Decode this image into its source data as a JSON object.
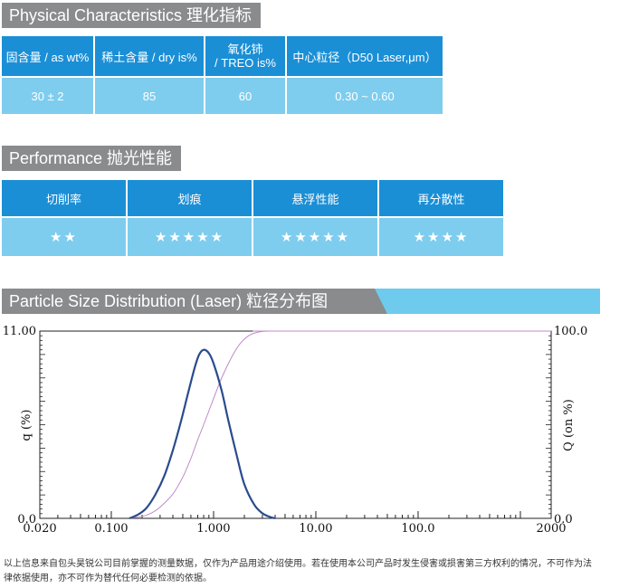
{
  "section1": {
    "title": "Physical Characteristics  理化指标",
    "headers": [
      "固含量 / as wt%",
      "稀土含量 / dry is%",
      "氧化铈\n/ TREO is%",
      "中心粒径（D50 Laser,μm）"
    ],
    "values": [
      "30 ± 2",
      "85",
      "60",
      "0.30 ~ 0.60"
    ]
  },
  "section2": {
    "title": "Performance  抛光性能",
    "headers": [
      "切削率",
      "划痕",
      "悬浮性能",
      "再分散性"
    ],
    "ratings": [
      2,
      5,
      5,
      4
    ]
  },
  "section3": {
    "title": "Particle Size Distribution (Laser)  粒径分布图"
  },
  "colors": {
    "header_blue": "#1b8fd6",
    "value_light_blue": "#7ecdee",
    "title_grey": "#8a8b8d",
    "banner_cyan": "#6ecbed",
    "density_curve": "#2a4b8d",
    "cumulative_curve": "#c08ac8"
  },
  "chart_data": {
    "type": "line",
    "x_scale": "log",
    "xlim": [
      0.02,
      2000
    ],
    "ylim_left": [
      0,
      11
    ],
    "ylim_right": [
      0,
      100
    ],
    "x_tick_labels": [
      "0.020",
      "0.100",
      "1.000",
      "10.00",
      "100.0",
      "2000"
    ],
    "x_tick_values": [
      0.02,
      0.1,
      1,
      10,
      100,
      2000
    ],
    "y_left_label": "q (%)",
    "y_left_tick_labels": [
      "0.0",
      "11.00"
    ],
    "y_right_label": "Q (on %)",
    "y_right_tick_labels": [
      "0.0",
      "100.0"
    ],
    "grid": false,
    "series": [
      {
        "axis": "left",
        "x": [
          0.15,
          0.18,
          0.22,
          0.27,
          0.33,
          0.4,
          0.48,
          0.56,
          0.65,
          0.72,
          0.8,
          0.9,
          1.0,
          1.2,
          1.4,
          1.7,
          2.0,
          2.5,
          3.0,
          3.5,
          4.0
        ],
        "y": [
          0.0,
          0.2,
          0.6,
          1.4,
          2.5,
          4.0,
          5.7,
          7.3,
          8.8,
          9.6,
          9.9,
          9.7,
          9.1,
          7.5,
          5.7,
          3.6,
          2.0,
          0.8,
          0.3,
          0.1,
          0.0
        ]
      },
      {
        "axis": "right",
        "x": [
          0.15,
          0.2,
          0.25,
          0.3,
          0.4,
          0.5,
          0.6,
          0.7,
          0.8,
          1.0,
          1.2,
          1.5,
          1.8,
          2.2,
          2.6,
          3.0,
          3.5,
          4.0
        ],
        "y": [
          0.0,
          1.0,
          3.0,
          6.0,
          13.0,
          22.0,
          32.0,
          42.0,
          50.0,
          64.0,
          75.0,
          86.0,
          93.0,
          97.5,
          99.2,
          99.8,
          100.0,
          100.0
        ]
      }
    ]
  },
  "disclaimer": "以上信息来自包头昊锐公司目前掌握的测量数据，仅作为产品用途介绍使用。若在使用本公司产品时发生侵害或损害第三方权利的情况，不可作为法律依据使用，亦不可作为替代任何必要检测的依据。"
}
